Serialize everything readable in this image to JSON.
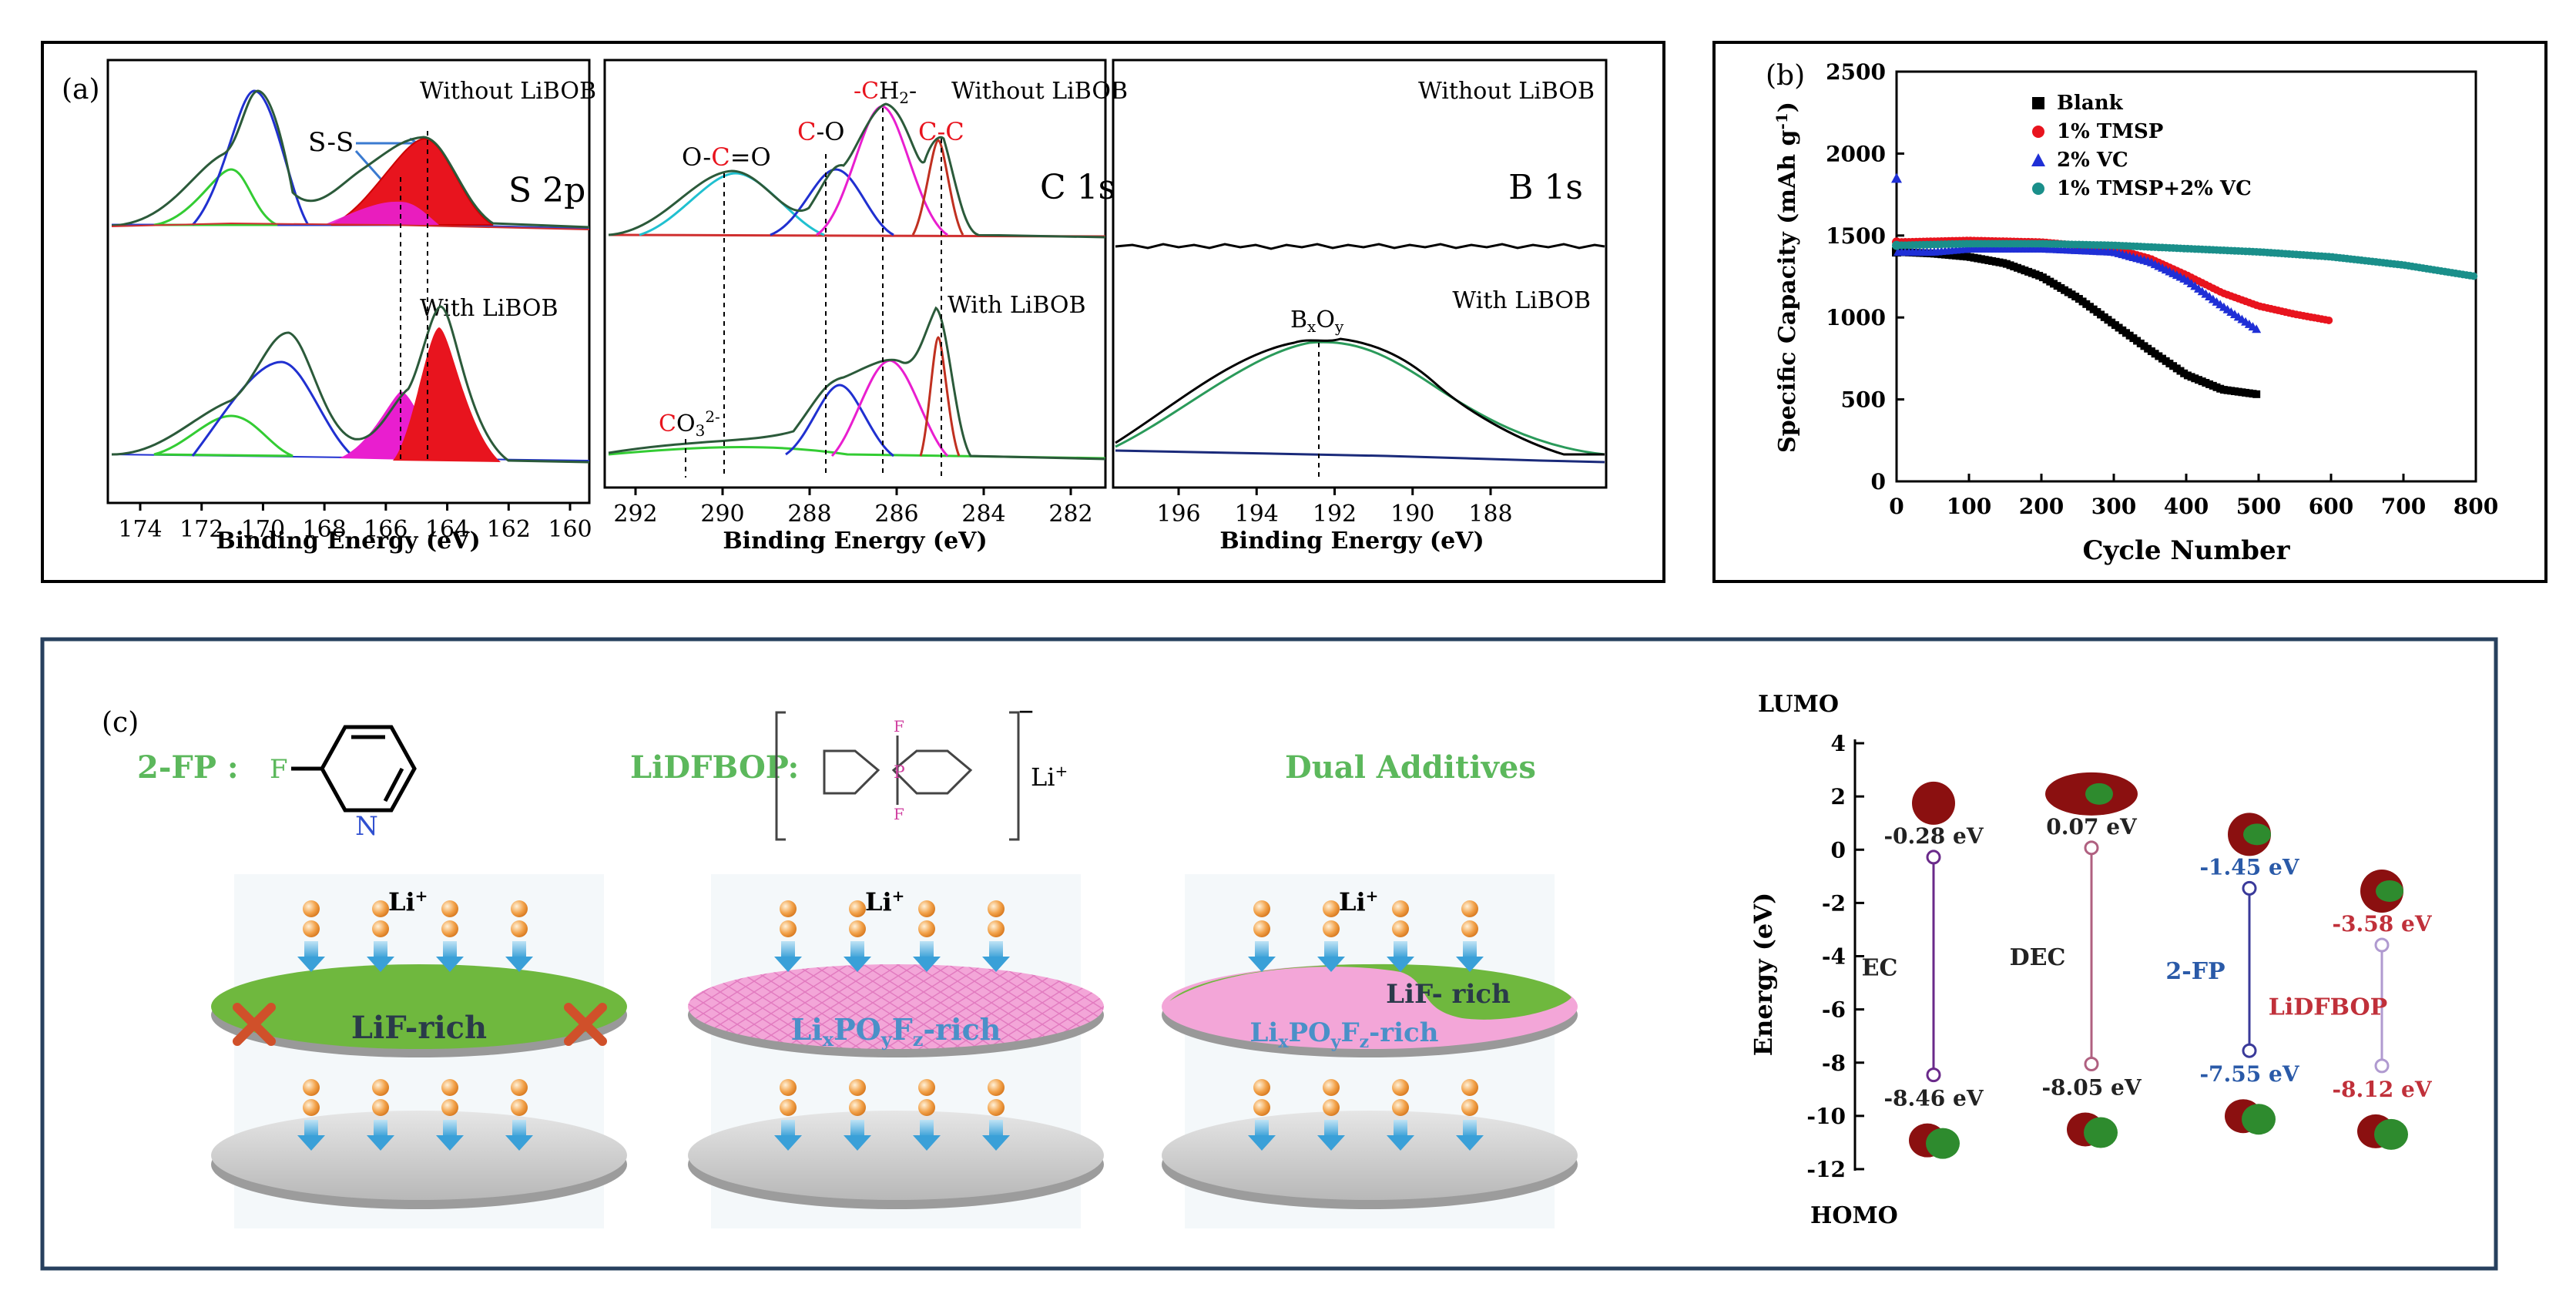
{
  "panel_a": {
    "label": "(a)",
    "axis_title": "Binding Energy (eV)",
    "s2p": {
      "title": "S 2p",
      "top_label": "Without LiBOB",
      "bottom_label": "With LiBOB",
      "peak_label": "S-S",
      "ticks": [
        "174",
        "172",
        "170",
        "168",
        "166",
        "164",
        "162",
        "160"
      ]
    },
    "c1s": {
      "title": "C 1s",
      "top_label": "Without LiBOB",
      "bottom_label": "With LiBOB",
      "label_oco_1": "O-",
      "label_oco_c": "C",
      "label_oco_2": "=O",
      "label_co_c": "C",
      "label_co_o": "-O",
      "label_ch2_dash": "-",
      "label_ch2_c": "C",
      "label_ch2_h": "H",
      "label_ch2_sub": "2",
      "label_ch2_dash2": "-",
      "label_cc_1": "C",
      "label_cc_dash": "-",
      "label_cc_2": "C",
      "label_co3_c": "C",
      "label_co3_o": "O",
      "label_co3_sub": "3",
      "label_co3_sup": "2-",
      "ticks": [
        "292",
        "290",
        "288",
        "286",
        "284",
        "282"
      ]
    },
    "b1s": {
      "title": "B 1s",
      "top_label": "Without LiBOB",
      "bottom_label": "With LiBOB",
      "peak_label_b": "B",
      "peak_label_x": "x",
      "peak_label_o": "O",
      "peak_label_y": "y",
      "ticks": [
        "196",
        "194",
        "192",
        "190",
        "188"
      ]
    }
  },
  "panel_b": {
    "label": "(b)",
    "chart_data": {
      "type": "scatter",
      "xlabel": "Cycle Number",
      "ylabel_main": "Specific Capacity (mAh g",
      "ylabel_sup": "-1",
      "ylabel_end": ")",
      "xlim": [
        0,
        800
      ],
      "ylim": [
        0,
        2500
      ],
      "xticks": [
        "0",
        "100",
        "200",
        "300",
        "400",
        "500",
        "600",
        "700",
        "800"
      ],
      "yticks": [
        "0",
        "500",
        "1000",
        "1500",
        "2000",
        "2500"
      ],
      "legend_position": "top-center",
      "series": [
        {
          "name": "Blank",
          "color": "#000000",
          "marker": "square",
          "x": [
            0,
            50,
            100,
            150,
            200,
            250,
            300,
            350,
            400,
            450,
            500
          ],
          "y": [
            1400,
            1390,
            1370,
            1330,
            1250,
            1120,
            960,
            800,
            650,
            560,
            530
          ]
        },
        {
          "name": "1% TMSP",
          "color": "#e8141e",
          "marker": "circle",
          "x": [
            0,
            100,
            200,
            300,
            350,
            400,
            450,
            500,
            550,
            600
          ],
          "y": [
            1460,
            1470,
            1460,
            1420,
            1360,
            1260,
            1150,
            1070,
            1020,
            980
          ]
        },
        {
          "name": "2% VC",
          "color": "#1f2fd6",
          "marker": "triangle",
          "x": [
            0,
            2,
            50,
            100,
            200,
            300,
            350,
            400,
            450,
            500
          ],
          "y": [
            1850,
            1400,
            1400,
            1420,
            1420,
            1400,
            1340,
            1230,
            1070,
            920
          ]
        },
        {
          "name": "1% TMSP+2% VC",
          "color": "#1a8f8a",
          "marker": "circle",
          "x": [
            0,
            100,
            200,
            300,
            400,
            500,
            600,
            700,
            800
          ],
          "y": [
            1440,
            1450,
            1450,
            1440,
            1420,
            1400,
            1370,
            1320,
            1250
          ]
        }
      ]
    }
  },
  "panel_c": {
    "label": "(c)",
    "fp_label": "2-FP :",
    "fp_f": "F",
    "fp_n": "N",
    "lidfbop_label": "LiDFBOP:",
    "lidfbop_li": "Li",
    "lidfbop_plus": "+",
    "lidfbop_minus": "–",
    "lidfbop_f": "F",
    "lidfbop_p": "P",
    "dual_label": "Dual Additives",
    "li_ion": "Li",
    "li_ion_plus": "+",
    "disk1_text": "LiF-rich",
    "disk2_text_main": "Li",
    "disk2_sub_x": "x",
    "disk2_po": "PO",
    "disk2_sub_y": "y",
    "disk2_f": "F",
    "disk2_sub_z": "z",
    "disk2_rich": "-rich",
    "disk3_lif": "LiF- rich",
    "energy": {
      "lumo": "LUMO",
      "homo": "HOMO",
      "ylabel": "Energy (eV)",
      "yticks": [
        "4",
        "2",
        "0",
        "-2",
        "-4",
        "-6",
        "-8",
        "-10",
        "-12"
      ],
      "molecules": [
        {
          "name": "EC",
          "lumo": "-0.28 eV",
          "homo": "-8.46 eV",
          "lumo_v": -0.28,
          "homo_v": -8.46,
          "color": "#6a2a8a",
          "label_color": "#222222"
        },
        {
          "name": "DEC",
          "lumo": "0.07 eV",
          "homo": "-8.05 eV",
          "lumo_v": 0.07,
          "homo_v": -8.05,
          "color": "#b06080",
          "label_color": "#222222"
        },
        {
          "name": "2-FP",
          "lumo": "-1.45 eV",
          "homo": "-7.55 eV",
          "lumo_v": -1.45,
          "homo_v": -7.55,
          "color": "#3a3a9a",
          "label_color": "#2a5aa8"
        },
        {
          "name": "LiDFBOP",
          "lumo": "-3.58 eV",
          "homo": "-8.12 eV",
          "lumo_v": -3.58,
          "homo_v": -8.12,
          "color": "#b09ad0",
          "label_color": "#c0303a"
        }
      ]
    }
  }
}
